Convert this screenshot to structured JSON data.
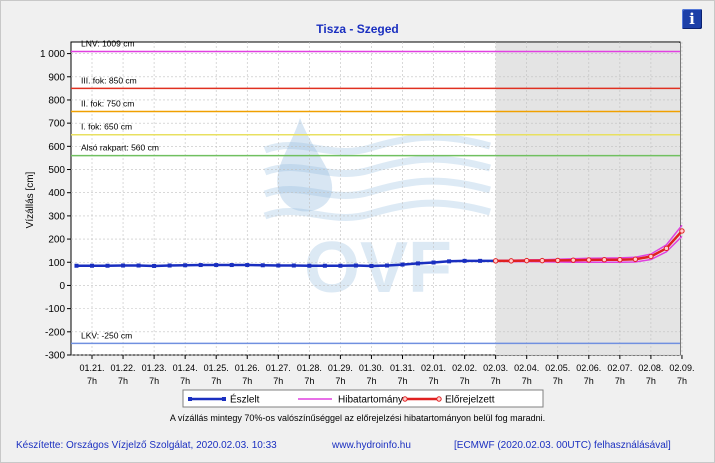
{
  "header": {
    "title": "Tisza - Szeged",
    "info_icon": "info-icon",
    "info_glyph": "i"
  },
  "chart_data": {
    "type": "line",
    "title": "Tisza - Szeged",
    "ylabel": "Vízállás [cm]",
    "xlabel": "",
    "ylim": [
      -300,
      1050
    ],
    "yticks": [
      -300,
      -200,
      -100,
      0,
      100,
      200,
      300,
      400,
      500,
      600,
      700,
      800,
      900,
      1000
    ],
    "ytick_labels": [
      "-300",
      "-200",
      "-100",
      "0",
      "100",
      "200",
      "300",
      "400",
      "500",
      "600",
      "700",
      "800",
      "900",
      "1 000"
    ],
    "x_ticks": [
      {
        "day": "01.21.",
        "hour": "7h"
      },
      {
        "day": "01.22.",
        "hour": "7h"
      },
      {
        "day": "01.23.",
        "hour": "7h"
      },
      {
        "day": "01.24.",
        "hour": "7h"
      },
      {
        "day": "01.25.",
        "hour": "7h"
      },
      {
        "day": "01.26.",
        "hour": "7h"
      },
      {
        "day": "01.27.",
        "hour": "7h"
      },
      {
        "day": "01.28.",
        "hour": "7h"
      },
      {
        "day": "01.29.",
        "hour": "7h"
      },
      {
        "day": "01.30.",
        "hour": "7h"
      },
      {
        "day": "01.31.",
        "hour": "7h"
      },
      {
        "day": "02.01.",
        "hour": "7h"
      },
      {
        "day": "02.02.",
        "hour": "7h"
      },
      {
        "day": "02.03.",
        "hour": "7h"
      },
      {
        "day": "02.04.",
        "hour": "7h"
      },
      {
        "day": "02.05.",
        "hour": "7h"
      },
      {
        "day": "02.06.",
        "hour": "7h"
      },
      {
        "day": "02.07.",
        "hour": "7h"
      },
      {
        "day": "02.08.",
        "hour": "7h"
      },
      {
        "day": "02.09.",
        "hour": "7h"
      }
    ],
    "forecast_start_index": 13,
    "reference_lines": [
      {
        "label": "LNV: 1009 cm",
        "value": 1009,
        "color": "#e040e0"
      },
      {
        "label": "III. fok: 850 cm",
        "value": 850,
        "color": "#e03020"
      },
      {
        "label": "II. fok: 750 cm",
        "value": 750,
        "color": "#f0a000"
      },
      {
        "label": "I. fok: 650 cm",
        "value": 650,
        "color": "#e8e060"
      },
      {
        "label": "Alsó rakpart: 560 cm",
        "value": 560,
        "color": "#70c060"
      },
      {
        "label": "LKV: -250 cm",
        "value": -250,
        "color": "#7090e0"
      }
    ],
    "series": [
      {
        "name": "Észlelt",
        "color": "#1a2fc0",
        "points": [
          [
            -0.5,
            85
          ],
          [
            0,
            85
          ],
          [
            0.5,
            85
          ],
          [
            1,
            86
          ],
          [
            1.5,
            86
          ],
          [
            2,
            84
          ],
          [
            2.5,
            86
          ],
          [
            3,
            87
          ],
          [
            3.5,
            88
          ],
          [
            4,
            88
          ],
          [
            4.5,
            88
          ],
          [
            5,
            88
          ],
          [
            5.5,
            87
          ],
          [
            6,
            86
          ],
          [
            6.5,
            86
          ],
          [
            7,
            85
          ],
          [
            7.5,
            85
          ],
          [
            8,
            85
          ],
          [
            8.5,
            86
          ],
          [
            9,
            84
          ],
          [
            9.5,
            86
          ],
          [
            10,
            90
          ],
          [
            10.5,
            95
          ],
          [
            11,
            99
          ],
          [
            11.5,
            104
          ],
          [
            12,
            106
          ],
          [
            12.5,
            106
          ],
          [
            13,
            106
          ]
        ]
      },
      {
        "name": "Előrejelzett",
        "color": "#e02020",
        "points": [
          [
            13,
            106
          ],
          [
            13.5,
            106
          ],
          [
            14,
            107
          ],
          [
            14.5,
            107
          ],
          [
            15,
            108
          ],
          [
            15.5,
            109
          ],
          [
            16,
            110
          ],
          [
            16.5,
            111
          ],
          [
            17,
            111
          ],
          [
            17.5,
            113
          ],
          [
            18,
            125
          ],
          [
            18.5,
            160
          ],
          [
            19,
            235
          ]
        ]
      },
      {
        "name": "Hibatartomány",
        "color": "#e040e0",
        "upper": [
          [
            13,
            108
          ],
          [
            13.5,
            109
          ],
          [
            14,
            110
          ],
          [
            14.5,
            111
          ],
          [
            15,
            113
          ],
          [
            15.5,
            115
          ],
          [
            16,
            117
          ],
          [
            16.5,
            118
          ],
          [
            17,
            119
          ],
          [
            17.5,
            122
          ],
          [
            18,
            135
          ],
          [
            18.5,
            175
          ],
          [
            19,
            260
          ]
        ],
        "lower": [
          [
            13,
            104
          ],
          [
            13.5,
            103
          ],
          [
            14,
            103
          ],
          [
            14.5,
            102
          ],
          [
            15,
            101
          ],
          [
            15.5,
            100
          ],
          [
            16,
            100
          ],
          [
            16.5,
            100
          ],
          [
            17,
            100
          ],
          [
            17.5,
            101
          ],
          [
            18,
            112
          ],
          [
            18.5,
            145
          ],
          [
            19,
            212
          ]
        ]
      }
    ],
    "legend": [
      "Észlelt",
      "Hibatartomány",
      "Előrejelzett"
    ],
    "legend_placement": "bottom"
  },
  "notes": {
    "range_note": "A vízállás mintegy 70%-os valószínűséggel az előrejelzési hibatartományon belül fog maradni."
  },
  "footer": {
    "author": "Készítette: Országos Vízjelző Szolgálat, 2020.02.03. 10:33",
    "website": "www.hydroinfo.hu",
    "model": "[ECMWF (2020.02.03. 00UTC) felhasználásával]"
  },
  "watermark": {
    "text": "OVF",
    "color": "#8eb8dd"
  }
}
